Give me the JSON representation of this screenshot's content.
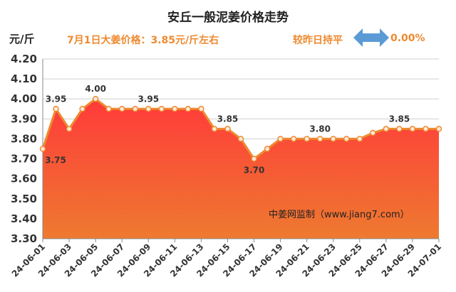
{
  "header": {
    "title": "安丘一般泥姜价格走势",
    "unit": "元/斤",
    "price_text": "7月1日大姜价格：3.85元/斤左右",
    "compare_text": "较昨日持平",
    "change_text": "0.00%",
    "arrow_icon": "double-arrow-icon",
    "arrow_color": "#5b9bd5"
  },
  "watermark": "中姜网监制（www.jiang7.com）",
  "colors": {
    "line": "#ee8a30",
    "marker_fill": "#fde9d9",
    "area_top": "#ff3a3a",
    "area_bottom": "#ee7a30"
  },
  "chart_data": {
    "type": "area",
    "title": "安丘一般泥姜价格走势",
    "ylabel": "元/斤",
    "ylim": [
      3.3,
      4.2
    ],
    "yticks": [
      "4.20",
      "4.10",
      "4.00",
      "3.90",
      "3.80",
      "3.70",
      "3.60",
      "3.50",
      "3.40",
      "3.30"
    ],
    "grid": true,
    "x": [
      "24-06-01",
      "24-06-02",
      "24-06-03",
      "24-06-04",
      "24-06-05",
      "24-06-06",
      "24-06-07",
      "24-06-08",
      "24-06-09",
      "24-06-10",
      "24-06-11",
      "24-06-12",
      "24-06-13",
      "24-06-14",
      "24-06-15",
      "24-06-16",
      "24-06-17",
      "24-06-18",
      "24-06-19",
      "24-06-20",
      "24-06-21",
      "24-06-22",
      "24-06-23",
      "24-06-24",
      "24-06-25",
      "24-06-26",
      "24-06-27",
      "24-06-28",
      "24-06-29",
      "24-06-30",
      "24-07-01"
    ],
    "xtick_labels": [
      "24-06-01",
      "24-06-03",
      "24-06-05",
      "24-06-07",
      "24-06-09",
      "24-06-11",
      "24-06-13",
      "24-06-15",
      "24-06-17",
      "24-06-19",
      "24-06-21",
      "24-06-23",
      "24-06-25",
      "24-06-27",
      "24-06-29",
      "24-07-01"
    ],
    "values": [
      3.75,
      3.95,
      3.85,
      3.95,
      4.0,
      3.95,
      3.95,
      3.95,
      3.95,
      3.95,
      3.95,
      3.95,
      3.95,
      3.85,
      3.85,
      3.8,
      3.7,
      3.75,
      3.8,
      3.8,
      3.8,
      3.8,
      3.8,
      3.8,
      3.8,
      3.83,
      3.85,
      3.85,
      3.85,
      3.85,
      3.85
    ],
    "data_labels": [
      {
        "index": 0,
        "text": "3.75"
      },
      {
        "index": 1,
        "text": "3.95"
      },
      {
        "index": 4,
        "text": "4.00"
      },
      {
        "index": 8,
        "text": "3.95"
      },
      {
        "index": 14,
        "text": "3.85"
      },
      {
        "index": 16,
        "text": "3.70"
      },
      {
        "index": 21,
        "text": "3.80"
      },
      {
        "index": 27,
        "text": "3.85"
      }
    ]
  }
}
